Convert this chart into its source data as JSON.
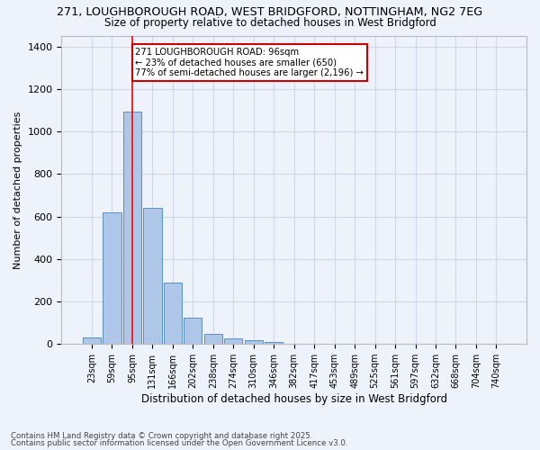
{
  "title_line1": "271, LOUGHBOROUGH ROAD, WEST BRIDGFORD, NOTTINGHAM, NG2 7EG",
  "title_line2": "Size of property relative to detached houses in West Bridgford",
  "xlabel": "Distribution of detached houses by size in West Bridgford",
  "ylabel": "Number of detached properties",
  "categories": [
    "23sqm",
    "59sqm",
    "95sqm",
    "131sqm",
    "166sqm",
    "202sqm",
    "238sqm",
    "274sqm",
    "310sqm",
    "346sqm",
    "382sqm",
    "417sqm",
    "453sqm",
    "489sqm",
    "525sqm",
    "561sqm",
    "597sqm",
    "632sqm",
    "668sqm",
    "704sqm",
    "740sqm"
  ],
  "values": [
    30,
    620,
    1095,
    640,
    290,
    125,
    47,
    25,
    20,
    8,
    0,
    0,
    0,
    0,
    0,
    0,
    0,
    0,
    0,
    0,
    0
  ],
  "bar_color": "#aec6e8",
  "bar_edge_color": "#5a8fc3",
  "grid_color": "#d0d8e8",
  "background_color": "#eef2fb",
  "red_line_x": 2,
  "annotation_text": "271 LOUGHBOROUGH ROAD: 96sqm\n← 23% of detached houses are smaller (650)\n77% of semi-detached houses are larger (2,196) →",
  "annotation_box_color": "#ffffff",
  "annotation_box_edge_color": "#cc0000",
  "ylim": [
    0,
    1450
  ],
  "yticks": [
    0,
    200,
    400,
    600,
    800,
    1000,
    1200,
    1400
  ],
  "footer_line1": "Contains HM Land Registry data © Crown copyright and database right 2025.",
  "footer_line2": "Contains public sector information licensed under the Open Government Licence v3.0."
}
